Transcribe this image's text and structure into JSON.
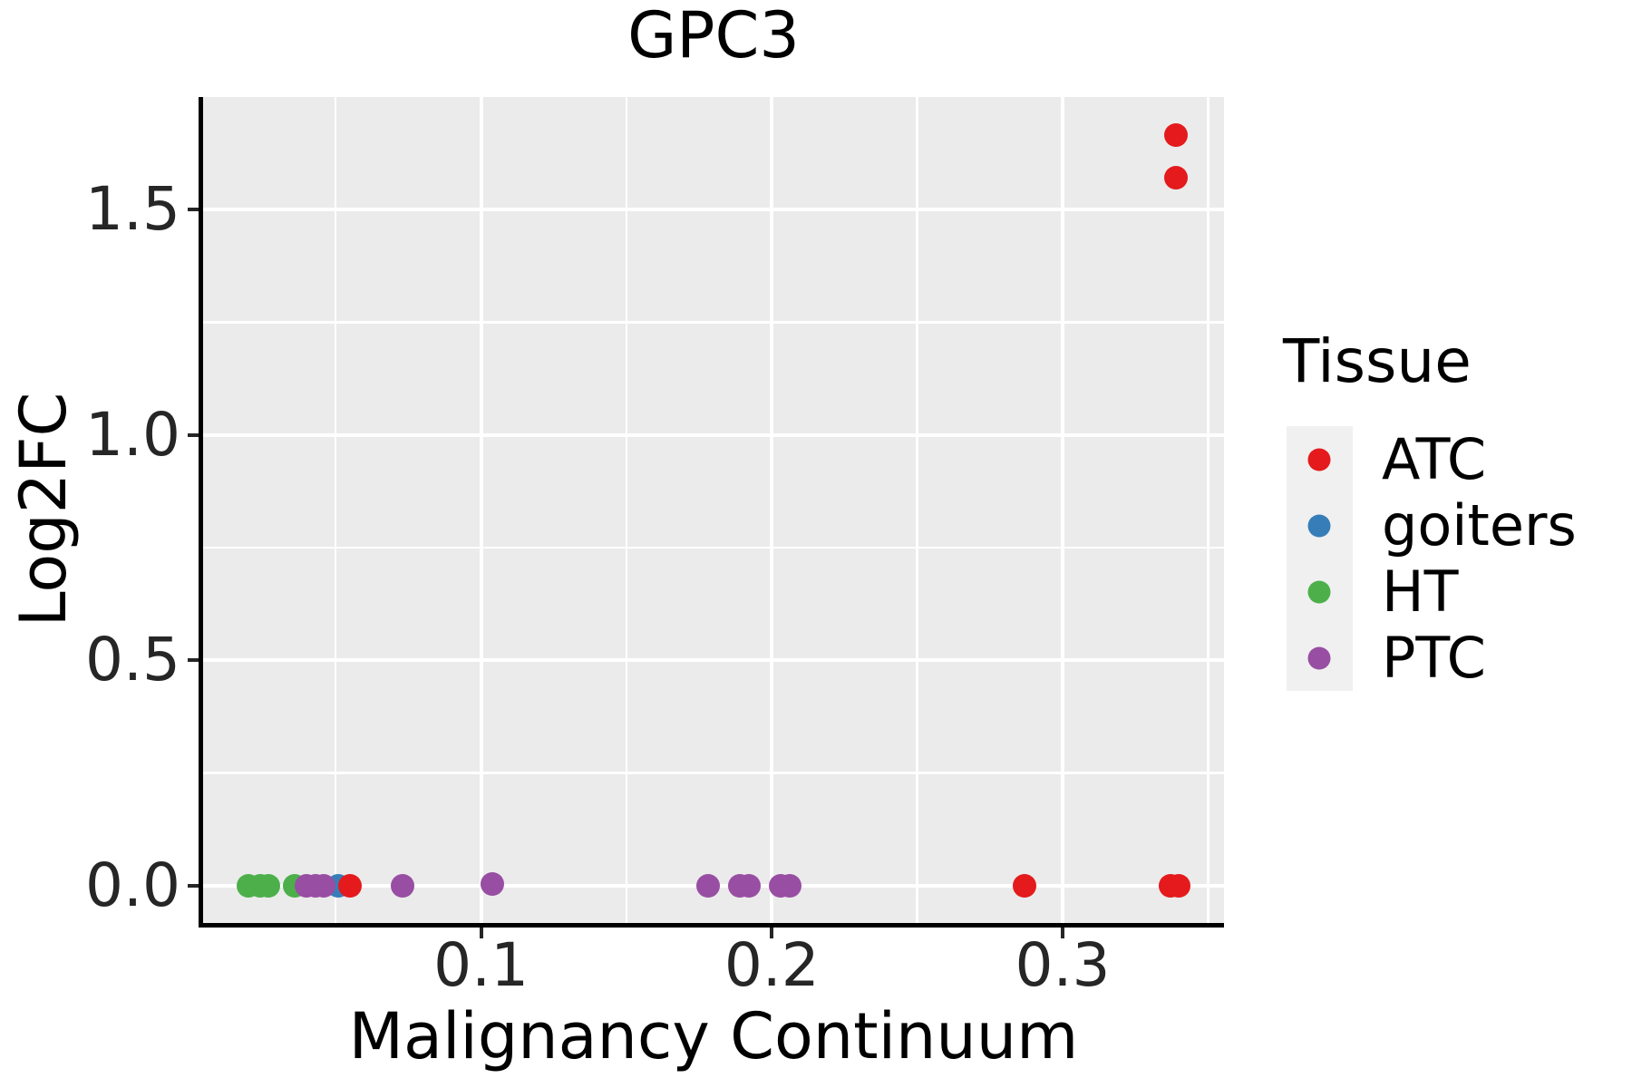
{
  "title": "GPC3",
  "axes": {
    "x_label": "Malignancy Continuum",
    "y_label": "Log2FC"
  },
  "legend": {
    "title": "Tissue",
    "items": [
      {
        "label": "ATC",
        "color": "#E41A1C"
      },
      {
        "label": "goiters",
        "color": "#377EB8"
      },
      {
        "label": "HT",
        "color": "#4DAF4A"
      },
      {
        "label": "PTC",
        "color": "#984EA3"
      }
    ]
  },
  "style": {
    "panel_background": "#EBEBEB",
    "grid_color": "#FFFFFF",
    "axis_line_color": "#000000",
    "legend_key_background": "#F0F0F0"
  },
  "chart_data": {
    "type": "scatter",
    "title": "GPC3",
    "xlabel": "Malignancy Continuum",
    "ylabel": "Log2FC",
    "xlim": [
      0.0044,
      0.3555
    ],
    "ylim": [
      -0.0825,
      1.75
    ],
    "x_ticks": [
      0.1,
      0.2,
      0.3
    ],
    "y_ticks": [
      0.0,
      0.5,
      1.0,
      1.5
    ],
    "x_minor_gridlines": [
      0.05,
      0.15,
      0.25,
      0.35
    ],
    "y_minor_gridlines": [
      0.25,
      0.75,
      1.25
    ],
    "grid": true,
    "legend_position": "right",
    "series": [
      {
        "name": "ATC",
        "color": "#E41A1C",
        "points": [
          [
            0.055,
            0
          ],
          [
            0.287,
            0
          ],
          [
            0.337,
            0
          ],
          [
            0.34,
            0
          ],
          [
            0.339,
            1.665
          ],
          [
            0.339,
            1.57
          ]
        ]
      },
      {
        "name": "goiters",
        "color": "#377EB8",
        "points": [
          [
            0.051,
            0
          ]
        ]
      },
      {
        "name": "HT",
        "color": "#4DAF4A",
        "points": [
          [
            0.02,
            0
          ],
          [
            0.024,
            0
          ],
          [
            0.027,
            0
          ],
          [
            0.036,
            0
          ]
        ]
      },
      {
        "name": "PTC",
        "color": "#984EA3",
        "points": [
          [
            0.04,
            0
          ],
          [
            0.043,
            0
          ],
          [
            0.046,
            0
          ],
          [
            0.073,
            0
          ],
          [
            0.104,
            0.005
          ],
          [
            0.178,
            0
          ],
          [
            0.189,
            0
          ],
          [
            0.192,
            0
          ],
          [
            0.203,
            0
          ],
          [
            0.206,
            0
          ]
        ]
      }
    ]
  }
}
